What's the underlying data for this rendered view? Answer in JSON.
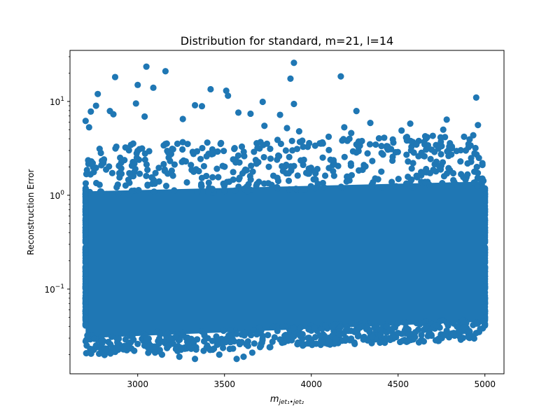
{
  "chart_data": {
    "type": "scatter",
    "title": "Distribution for standard, m=21, l=14",
    "xlabel_base": "m",
    "xlabel_sub": "jet₁•jet₂",
    "ylabel": "Reconstruction Error",
    "xlim": [
      2610,
      5110
    ],
    "ylim": [
      0.0125,
      35
    ],
    "yscale": "log",
    "grid": false,
    "marker_color": "#1f77b4",
    "x_ticks": [
      {
        "value": 3000,
        "label": "3000"
      },
      {
        "value": 3500,
        "label": "3500"
      },
      {
        "value": 4000,
        "label": "4000"
      },
      {
        "value": 4500,
        "label": "4500"
      },
      {
        "value": 5000,
        "label": "5000"
      }
    ],
    "y_ticks": [
      {
        "value": 0.1,
        "base": "10",
        "exp": "−1"
      },
      {
        "value": 1,
        "base": "10",
        "exp": "0"
      },
      {
        "value": 10,
        "base": "10",
        "exp": "1"
      }
    ],
    "dense_region": {
      "x": [
        2700,
        5000
      ],
      "y_low": [
        0.03,
        0.045
      ],
      "y_high": [
        1.1,
        1.4
      ]
    },
    "points": [
      [
        3050,
        23.5
      ],
      [
        3900,
        25.8
      ],
      [
        2870,
        18.2
      ],
      [
        3160,
        21
      ],
      [
        4170,
        18.5
      ],
      [
        3000,
        15
      ],
      [
        3090,
        14
      ],
      [
        2770,
        12
      ],
      [
        3880,
        17.5
      ],
      [
        3420,
        13.5
      ],
      [
        3510,
        13
      ],
      [
        3520,
        11.5
      ],
      [
        4950,
        11
      ],
      [
        3720,
        9.9
      ],
      [
        2760,
        9.0
      ],
      [
        2990,
        9.5
      ],
      [
        3330,
        9.1
      ],
      [
        3370,
        8.9
      ],
      [
        3900,
        9.4
      ],
      [
        4260,
        7.9
      ],
      [
        2730,
        7.8
      ],
      [
        2840,
        7.9
      ],
      [
        2860,
        7.3
      ],
      [
        3040,
        6.9
      ],
      [
        3580,
        7.6
      ],
      [
        3650,
        7.4
      ],
      [
        3820,
        7.2
      ],
      [
        4780,
        6.4
      ],
      [
        2700,
        6.2
      ],
      [
        4340,
        5.9
      ],
      [
        4570,
        5.8
      ],
      [
        4960,
        5.6
      ],
      [
        2720,
        5.3
      ],
      [
        3260,
        6.5
      ],
      [
        4190,
        5.3
      ],
      [
        4230,
        4.6
      ],
      [
        4520,
        4.9
      ],
      [
        4700,
        4.3
      ],
      [
        4760,
        5.0
      ],
      [
        4880,
        4.2
      ],
      [
        3730,
        5.5
      ],
      [
        3860,
        5.2
      ],
      [
        3930,
        4.8
      ],
      [
        4100,
        4.2
      ],
      [
        4420,
        4.1
      ],
      [
        4650,
        3.7
      ],
      [
        4810,
        3.3
      ],
      [
        4890,
        3.0
      ],
      [
        4940,
        2.8
      ],
      [
        4970,
        1.5
      ],
      [
        3150,
        3.4
      ],
      [
        3480,
        3.6
      ],
      [
        3010,
        3.1
      ],
      [
        3600,
        3.3
      ],
      [
        3690,
        3.2
      ]
    ],
    "low_points": [
      [
        2710,
        0.032
      ],
      [
        2760,
        0.025
      ],
      [
        2790,
        0.028
      ],
      [
        2850,
        0.031
      ],
      [
        2880,
        0.024
      ],
      [
        2930,
        0.029
      ],
      [
        2980,
        0.022
      ],
      [
        3000,
        0.026
      ],
      [
        3050,
        0.03
      ],
      [
        3100,
        0.021
      ],
      [
        3140,
        0.02
      ],
      [
        3180,
        0.025
      ],
      [
        3220,
        0.023
      ],
      [
        3240,
        0.019
      ],
      [
        3300,
        0.024
      ],
      [
        3330,
        0.018
      ],
      [
        3380,
        0.022
      ],
      [
        3430,
        0.028
      ],
      [
        3470,
        0.02
      ],
      [
        3530,
        0.023
      ],
      [
        3570,
        0.018
      ],
      [
        3610,
        0.019
      ],
      [
        3660,
        0.021
      ],
      [
        3710,
        0.026
      ],
      [
        3760,
        0.024
      ],
      [
        3820,
        0.029
      ],
      [
        3890,
        0.031
      ],
      [
        3950,
        0.033
      ],
      [
        4000,
        0.027
      ],
      [
        4050,
        0.032
      ],
      [
        4100,
        0.028
      ],
      [
        4160,
        0.033
      ],
      [
        4200,
        0.03
      ],
      [
        4250,
        0.026
      ],
      [
        4300,
        0.029
      ],
      [
        4350,
        0.031
      ],
      [
        4400,
        0.033
      ],
      [
        4450,
        0.03
      ],
      [
        4500,
        0.034
      ],
      [
        4560,
        0.033
      ],
      [
        4620,
        0.027
      ],
      [
        4680,
        0.035
      ],
      [
        4720,
        0.041
      ],
      [
        4780,
        0.036
      ],
      [
        4820,
        0.034
      ],
      [
        4880,
        0.039
      ],
      [
        4950,
        0.034
      ],
      [
        4990,
        0.045
      ]
    ]
  }
}
